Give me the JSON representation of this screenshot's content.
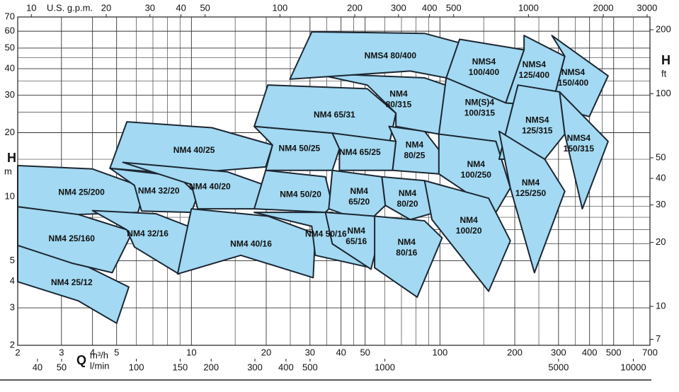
{
  "chart_data": {
    "type": "region-map",
    "x_label": "Q",
    "x_unit": "m³/h",
    "x2_unit": "l/min",
    "top_unit": "U.S. g.p.m.",
    "y_label": "H",
    "y_unit": "m",
    "y2_label": "H",
    "y2_unit": "ft",
    "log_x": true,
    "log_y": true,
    "grid": true,
    "xlim": [
      2,
      700
    ],
    "xticks": [
      2,
      3,
      4,
      5,
      10,
      20,
      30,
      40,
      50,
      100,
      200,
      300,
      400,
      500,
      700
    ],
    "x_minor_grid": [
      6,
      7,
      8,
      9,
      15,
      25,
      35,
      45,
      60,
      70,
      80,
      90,
      150,
      250,
      350,
      450,
      600
    ],
    "ylim": [
      2,
      70
    ],
    "yticks": [
      2,
      3,
      4,
      5,
      10,
      20,
      30,
      40,
      50,
      60,
      70
    ],
    "y_minor_grid": [
      6,
      7,
      8,
      9,
      15,
      25,
      35,
      45
    ],
    "toplim": [
      8.81,
      3082
    ],
    "topticks": [
      10,
      20,
      30,
      40,
      50,
      100,
      200,
      300,
      400,
      500,
      1000,
      2000,
      3000
    ],
    "x2lim": [
      33.3,
      11667
    ],
    "x2ticks": [
      40,
      50,
      100,
      150,
      200,
      300,
      400,
      500,
      1000,
      5000,
      10000
    ],
    "y2lim": [
      6.56,
      229.7
    ],
    "y2ticks": [
      7,
      10,
      20,
      30,
      40,
      50,
      100,
      200
    ],
    "color": "#a3d9f2",
    "edge_color": "#1c2733",
    "regions": [
      {
        "name": [
          "NM4 25/12"
        ],
        "q": [
          2,
          3.3,
          5.6,
          5.0,
          3.5,
          2
        ],
        "h": [
          5.9,
          5.1,
          3.76,
          2.54,
          3.24,
          3.98
        ]
      },
      {
        "name": [
          "NM4 25/160"
        ],
        "q": [
          2,
          3.5,
          5.8,
          4.8,
          3.3,
          2
        ],
        "h": [
          8.97,
          8.25,
          6.85,
          4.39,
          4.87,
          5.9
        ]
      },
      {
        "name": [
          "NM4 25/200"
        ],
        "q": [
          2,
          4.0,
          6.5,
          6.1,
          3.5,
          2
        ],
        "h": [
          14.0,
          13.5,
          11.0,
          8.44,
          8.25,
          8.97
        ]
      },
      {
        "name": [
          "NM4 32/20"
        ],
        "q": [
          4.7,
          8.8,
          10.6,
          10,
          6.3,
          5.9
        ],
        "h": [
          13.6,
          12.5,
          10.2,
          8.44,
          8.56,
          11.3
        ]
      },
      {
        "name": [
          "NM4 32/16"
        ],
        "q": [
          4.0,
          7.2,
          10.6,
          8.9,
          5.9,
          5.5
        ],
        "h": [
          8.6,
          8.31,
          6.98,
          4.33,
          5.8,
          6.98
        ]
      },
      {
        "name": [
          "NM4 40/25"
        ],
        "q": [
          5.5,
          12.1,
          21.2,
          19.9,
          8.8,
          4.7
        ],
        "h": [
          22.5,
          21.1,
          17.5,
          13.8,
          12.8,
          13.6
        ]
      },
      {
        "name": [
          "NM4 40/20"
        ],
        "q": [
          5.3,
          13.9,
          19.9,
          17.9,
          10.6,
          10
        ],
        "h": [
          14.5,
          13.1,
          11.3,
          8.77,
          8.77,
          11.4
        ]
      },
      {
        "name": [
          "NM4 40/16"
        ],
        "q": [
          10,
          20.3,
          31.5,
          30.9,
          15.8,
          8.8
        ],
        "h": [
          8.77,
          8.1,
          6.7,
          4.16,
          5.3,
          4.33
        ]
      },
      {
        "name": [
          "NM4 50/25"
        ],
        "q": [
          17.9,
          36.9,
          39.4,
          36.9,
          19.9,
          21.2
        ],
        "h": [
          21.4,
          19.9,
          16.8,
          13.3,
          13.3,
          17.5
        ]
      },
      {
        "name": [
          "NM4 50/20"
        ],
        "q": [
          19.9,
          34.6,
          36.9,
          34.6,
          17.9
        ],
        "h": [
          13.3,
          12.4,
          9.1,
          8.44,
          8.77
        ]
      },
      {
        "name": [
          "NM4 50/16"
        ],
        "q": [
          17.9,
          36.9,
          52.8,
          52.8,
          31.5,
          30.5
        ],
        "h": [
          8.44,
          8.44,
          6.7,
          4.63,
          5.3,
          7.26
        ]
      },
      {
        "name": [
          "NM4 65/31"
        ],
        "q": [
          20.3,
          51,
          66.5,
          62.4,
          36.9,
          17.9
        ],
        "h": [
          33.5,
          32.2,
          24.7,
          17.5,
          19.9,
          21.4
        ]
      },
      {
        "name": [
          "NM4 65/25"
        ],
        "q": [
          36.9,
          66.5,
          64.5,
          39.4,
          39.4
        ],
        "h": [
          19.9,
          18.2,
          13.3,
          13.3,
          16.8
        ]
      },
      {
        "name": [
          "NM4",
          "65/20"
        ],
        "q": [
          36.9,
          58.4,
          60.3,
          51,
          35.7
        ],
        "h": [
          13.3,
          12.4,
          9.1,
          7.54,
          8.77
        ]
      },
      {
        "name": [
          "NM4",
          "65/16"
        ],
        "q": [
          34.6,
          54.6,
          56.4,
          52.8,
          36.9
        ],
        "h": [
          8.44,
          8.1,
          6.2,
          4.56,
          6.0
        ]
      },
      {
        "name": [
          "NM4",
          "80/25"
        ],
        "q": [
          62.4,
          86.7,
          106,
          99,
          64.5,
          66.5
        ],
        "h": [
          21.4,
          20.3,
          15.0,
          12.8,
          13.3,
          18.2
        ]
      },
      {
        "name": [
          "NM4",
          "80/20"
        ],
        "q": [
          58.4,
          86.7,
          96,
          76,
          60.3
        ],
        "h": [
          12.4,
          11.9,
          8.44,
          7.8,
          9.1
        ]
      },
      {
        "name": [
          "NM4",
          "80/16"
        ],
        "q": [
          54.6,
          86.7,
          102,
          81,
          54.6
        ],
        "h": [
          8.1,
          7.7,
          6.4,
          3.37,
          4.63
        ]
      },
      {
        "name": [
          "NM4",
          "80/315"
        ],
        "q": [
          30.5,
          86.7,
          116,
          99,
          66.5,
          66.5,
          51
        ],
        "h": [
          38.1,
          36.2,
          32.2,
          19.7,
          21.4,
          24.7,
          33.5
        ]
      },
      {
        "name": [
          "NM(S)4",
          "100/315"
        ],
        "q": [
          106,
          168,
          206,
          173,
          99
        ],
        "h": [
          36.2,
          34.0,
          33.5,
          15.0,
          19.7
        ]
      },
      {
        "name": [
          "NM4",
          "100/250"
        ],
        "q": [
          99,
          168,
          192,
          168,
          99
        ],
        "h": [
          19.7,
          18.2,
          11.0,
          8.44,
          12.8
        ]
      },
      {
        "name": [
          "NM4",
          "100/20"
        ],
        "q": [
          86.7,
          157,
          192,
          157,
          92.9
        ],
        "h": [
          11.9,
          9.83,
          6.2,
          3.59,
          7.8
        ]
      },
      {
        "name": [
          "NMS4 80/400"
        ],
        "q": [
          30.5,
          86.7,
          120,
          106,
          76,
          24.9
        ],
        "h": [
          59.6,
          58.6,
          52.9,
          36.2,
          39.0,
          35.7
        ]
      },
      {
        "name": [
          "NMS4",
          "100/400"
        ],
        "q": [
          120,
          218,
          184,
          106
        ],
        "h": [
          55.0,
          49.0,
          27.6,
          36.2
        ]
      },
      {
        "name": [
          "NMS4",
          "125/400"
        ],
        "q": [
          218,
          318,
          282,
          184,
          218
        ],
        "h": [
          57.3,
          45.7,
          26.6,
          27.6,
          49.0
        ]
      },
      {
        "name": [
          "NMS4",
          "150/400"
        ],
        "q": [
          282,
          475,
          399,
          282,
          318
        ],
        "h": [
          57.3,
          37.0,
          23.8,
          26.6,
          45.7
        ]
      },
      {
        "name": [
          "NMS4",
          "125/315"
        ],
        "q": [
          206,
          303,
          318,
          264,
          173
        ],
        "h": [
          33.5,
          31.1,
          19.7,
          15.0,
          15.0
        ]
      },
      {
        "name": [
          "NMS4",
          "150/315"
        ],
        "q": [
          303,
          475,
          374,
          318
        ],
        "h": [
          31.1,
          18.2,
          8.77,
          19.7
        ]
      },
      {
        "name": [
          "NM4",
          "125/250"
        ],
        "q": [
          173,
          264,
          318,
          240,
          192
        ],
        "h": [
          20.3,
          15.0,
          10.6,
          4.39,
          11.0
        ]
      }
    ]
  }
}
